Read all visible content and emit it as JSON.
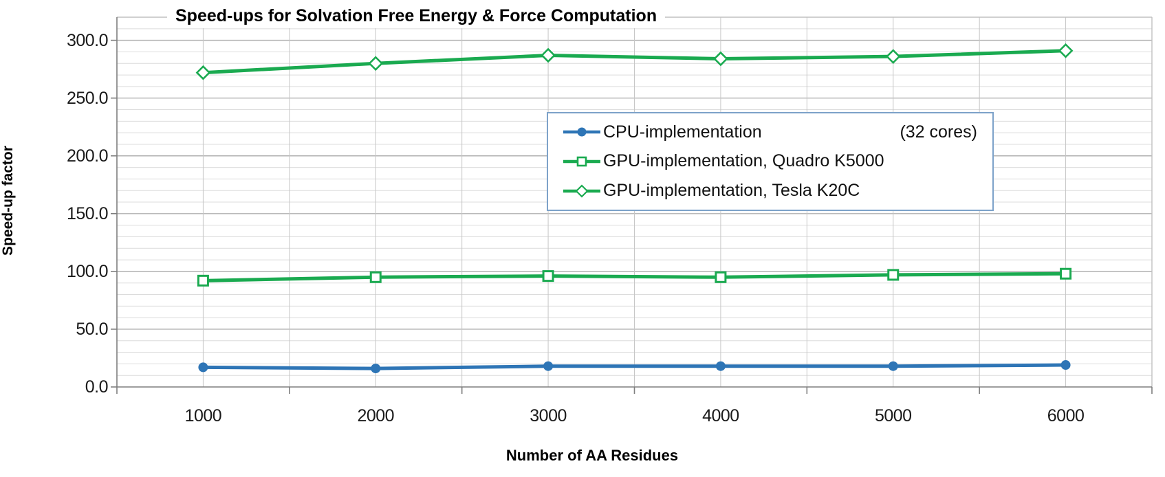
{
  "chart_data": {
    "type": "line",
    "title": "Speed-ups for Solvation Free Energy & Force Computation",
    "xlabel": "Number of AA Residues",
    "ylabel": "Speed-up factor",
    "x_categories": [
      1000,
      2000,
      3000,
      4000,
      5000,
      6000
    ],
    "x_tick_labels": [
      "1000",
      "2000",
      "3000",
      "4000",
      "5000",
      "6000"
    ],
    "y_axis": {
      "min": 0,
      "max": 320,
      "major_unit": 50,
      "minor_unit": 10,
      "tick_labels": [
        "0.0",
        "50.0",
        "100.0",
        "150.0",
        "200.0",
        "250.0",
        "300.0"
      ]
    },
    "series": [
      {
        "name": "CPU-implementation",
        "legend_label": "CPU-implementation",
        "legend_suffix": "(32 cores)",
        "marker": "circle-filled",
        "color": "#2e75b6",
        "values": [
          17,
          16,
          18,
          18,
          18,
          19
        ]
      },
      {
        "name": "GPU-implementation, Quadro K5000",
        "legend_label": "GPU-implementation, Quadro K5000",
        "legend_suffix": "",
        "marker": "square-open",
        "color": "#1aaa50",
        "values": [
          92,
          95,
          96,
          95,
          97,
          98
        ]
      },
      {
        "name": "GPU-implementation, Tesla K20C",
        "legend_label": "GPU-implementation, Tesla K20C",
        "legend_suffix": "",
        "marker": "diamond-open",
        "color": "#1aaa50",
        "values": [
          272,
          280,
          287,
          284,
          286,
          291
        ]
      }
    ],
    "legend": {
      "position": "inside-top-right"
    },
    "grid": {
      "minor_h_color": "#dcdcdc",
      "major_h_color": "#b0b0b0",
      "vertical_color": "#c6c6c6",
      "axis_color": "#7f7f7f",
      "border_color": "#c0c0c0"
    }
  }
}
